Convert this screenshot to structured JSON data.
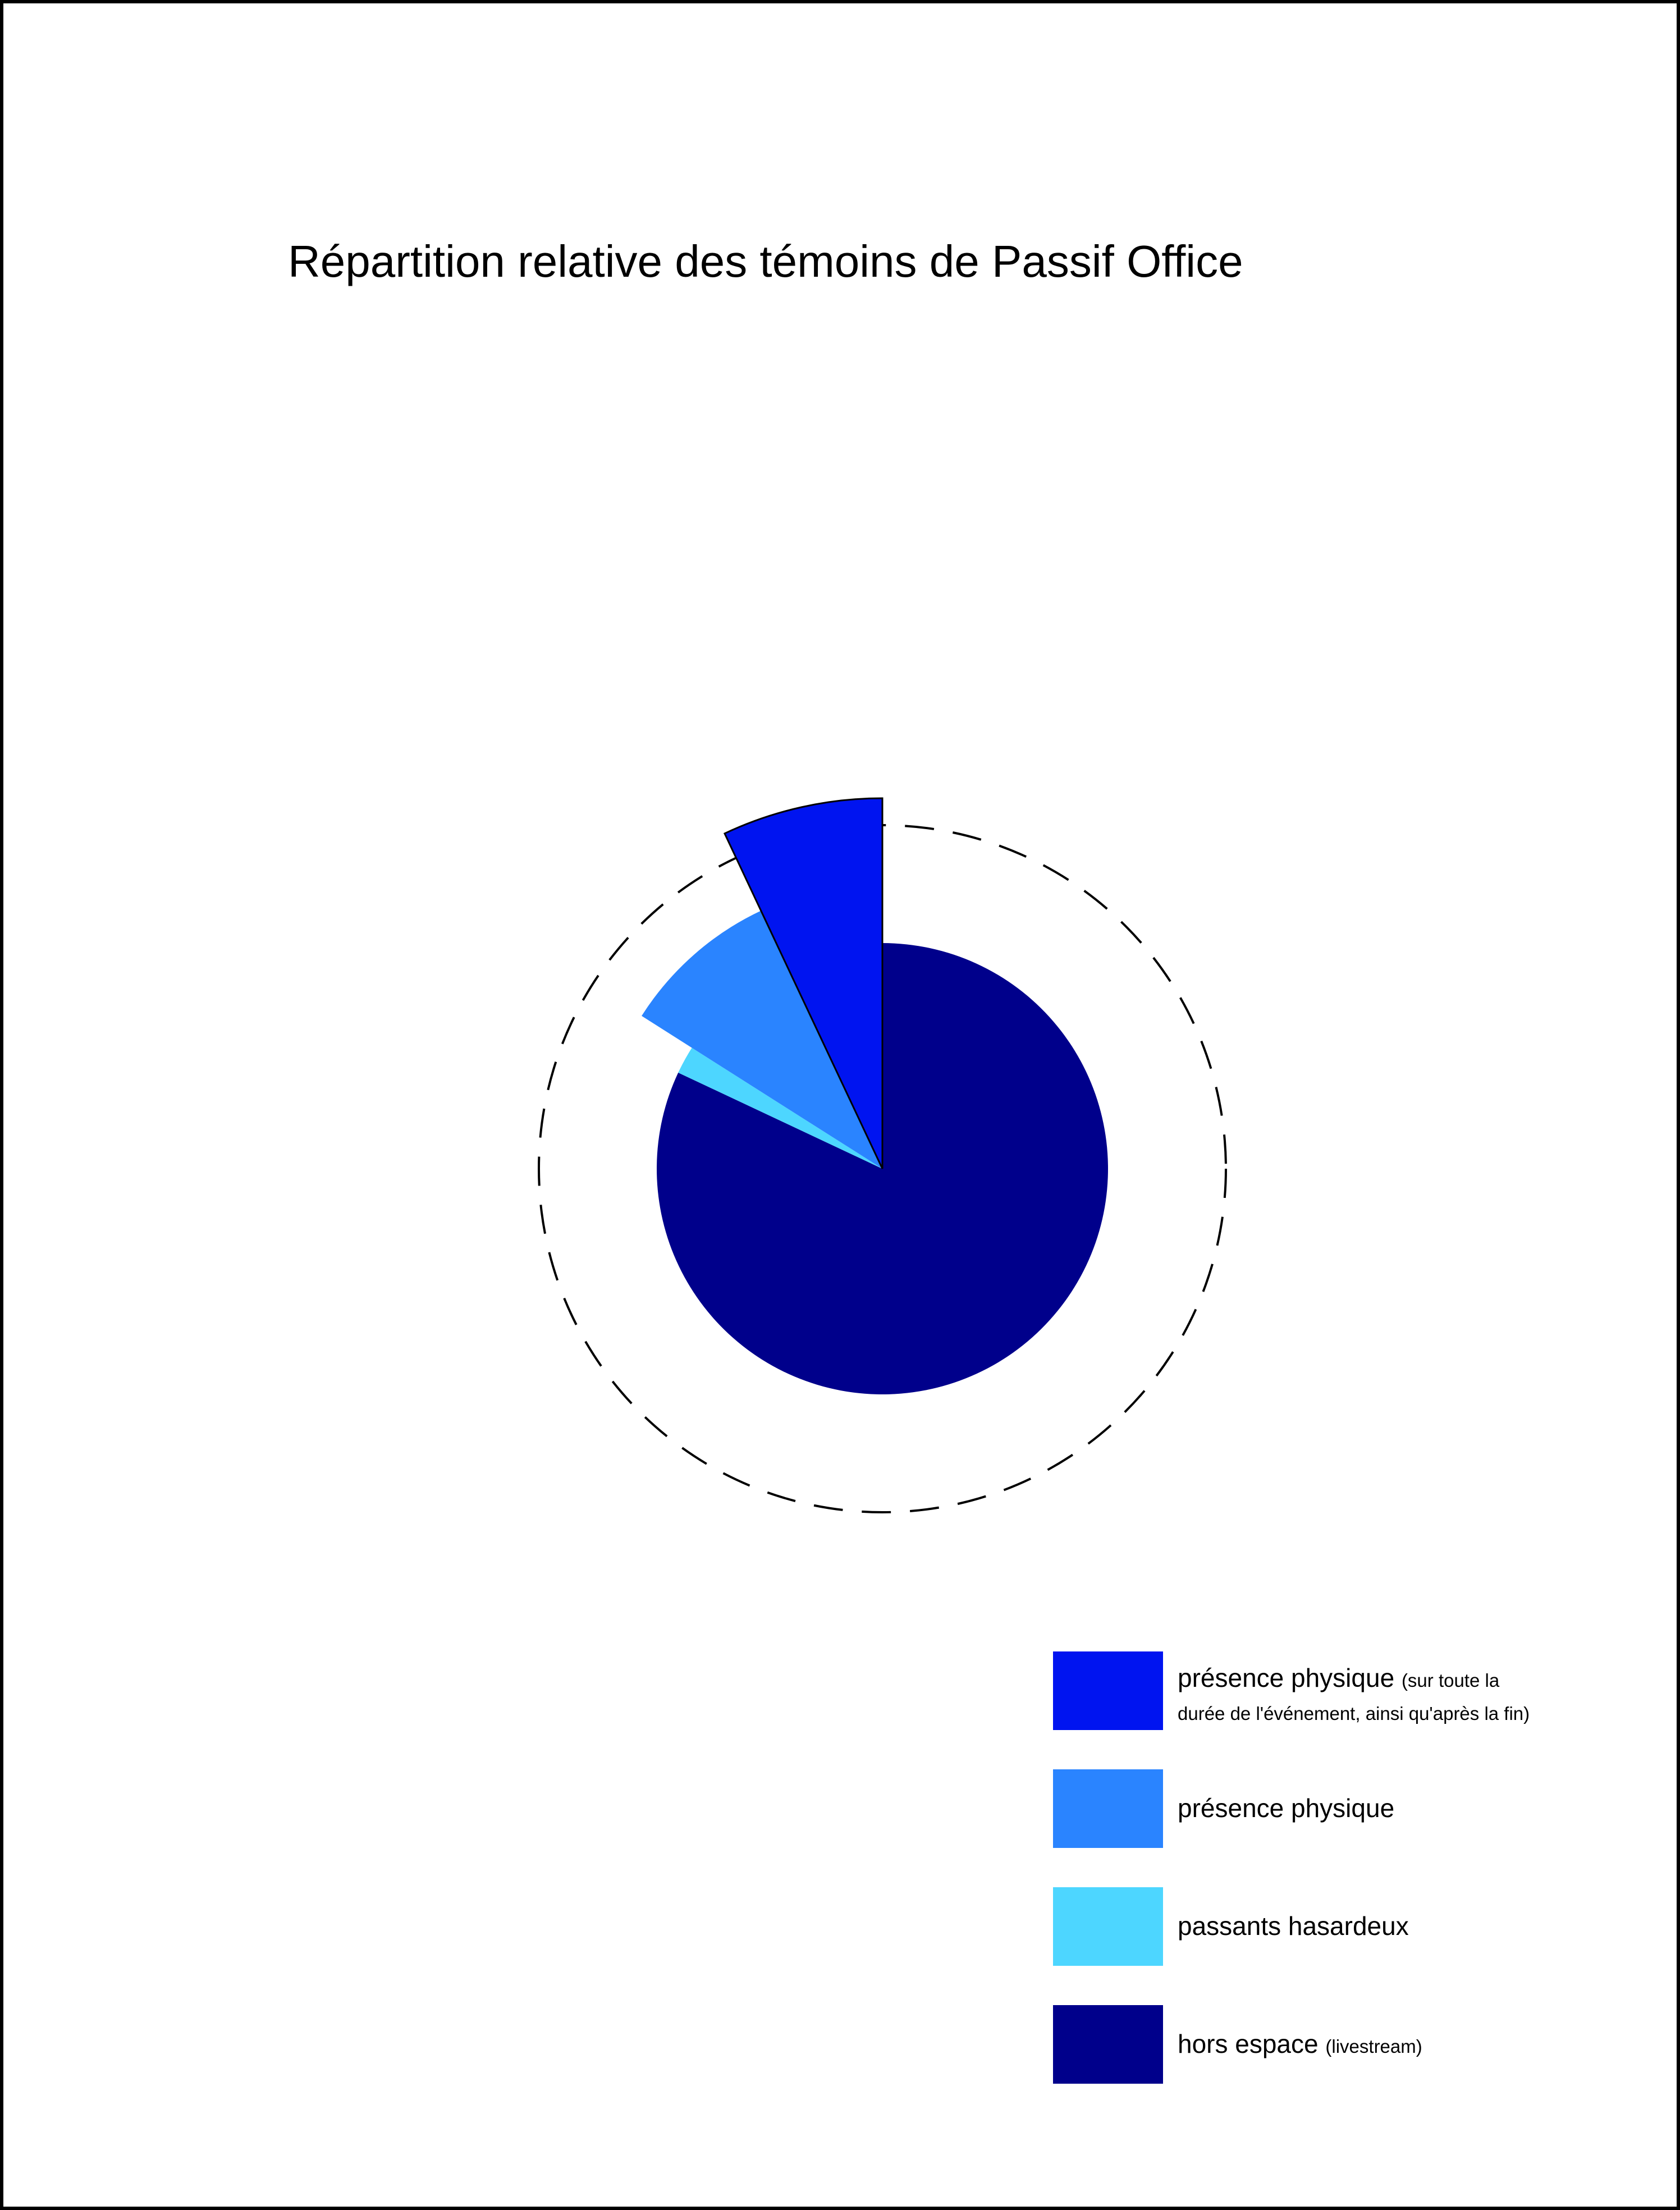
{
  "chart_data": {
    "type": "pie",
    "title": "Répartition relative des témoins de Passif Office",
    "slices": [
      {
        "label": "hors espace",
        "note": "(livestream)",
        "value": 82,
        "color": "#00008B",
        "exploded": false
      },
      {
        "label": "passants hasardeux",
        "note": "",
        "value": 2,
        "color": "#4DD6FF",
        "exploded": false
      },
      {
        "label": "présence physique",
        "note": "",
        "value": 9,
        "color": "#2A84FF",
        "exploded": true
      },
      {
        "label": "présence physique",
        "note": "(sur toute  la",
        "note2": "durée de l'événement, ainsi qu'après la fin)",
        "value": 7,
        "color": "#0014F0",
        "exploded": true
      }
    ],
    "outline": "dashed-circle",
    "legend_position": "bottom-right"
  },
  "legend": [
    {
      "label": "présence physique",
      "note": "(sur toute  la",
      "note2": "durée de l'événement, ainsi qu'après la fin)",
      "color": "#0014F0"
    },
    {
      "label": "présence physique",
      "color": "#2A84FF"
    },
    {
      "label": "passants hasardeux",
      "color": "#4DD6FF"
    },
    {
      "label": "hors espace",
      "note": "(livestream)",
      "color": "#00008B"
    }
  ]
}
